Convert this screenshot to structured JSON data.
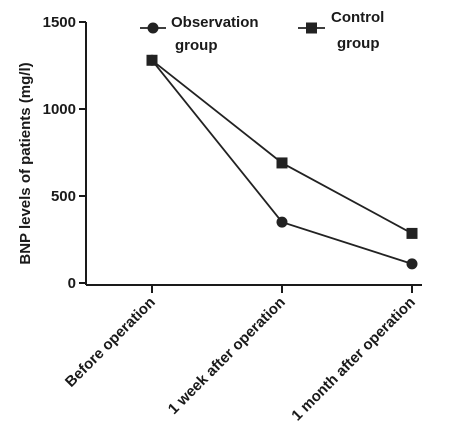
{
  "chart_data": {
    "type": "line",
    "categories": [
      "Before operation",
      "1 week after operation",
      "1 month after operation"
    ],
    "ylabel": "BNP levels of patients (mg/l)",
    "ylim": [
      0,
      1500
    ],
    "yticks": [
      0,
      500,
      1000,
      1500
    ],
    "grid": false,
    "legend_position": "top",
    "series": [
      {
        "name_lines": [
          "Observation",
          "group"
        ],
        "marker": "circle",
        "color": "#222222",
        "values": [
          1280,
          350,
          110
        ]
      },
      {
        "name_lines": [
          "Control",
          "group"
        ],
        "marker": "square",
        "color": "#222222",
        "values": [
          1280,
          690,
          285
        ]
      }
    ]
  }
}
